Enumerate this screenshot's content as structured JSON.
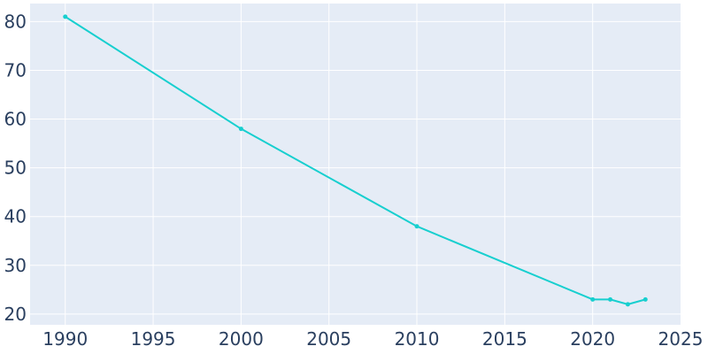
{
  "chart_data": {
    "type": "line",
    "title": "",
    "xlabel": "",
    "ylabel": "",
    "x": [
      1990,
      2000,
      2010,
      2020,
      2021,
      2022,
      2023
    ],
    "series": [
      {
        "values": [
          81,
          58,
          38,
          23,
          23,
          22,
          23
        ]
      }
    ],
    "xlim": [
      1988,
      2025
    ],
    "ylim": [
      17.8,
      83.7
    ],
    "xticks": [
      1990,
      1995,
      2000,
      2005,
      2010,
      2015,
      2020,
      2025
    ],
    "yticks": [
      20,
      30,
      40,
      50,
      60,
      70,
      80
    ],
    "grid": true,
    "legend": "none"
  },
  "colors": {
    "plot_background": "#e5ecf6",
    "grid": "#ffffff",
    "line": "#17cfcf",
    "tick_text": "#2a3f5f"
  }
}
